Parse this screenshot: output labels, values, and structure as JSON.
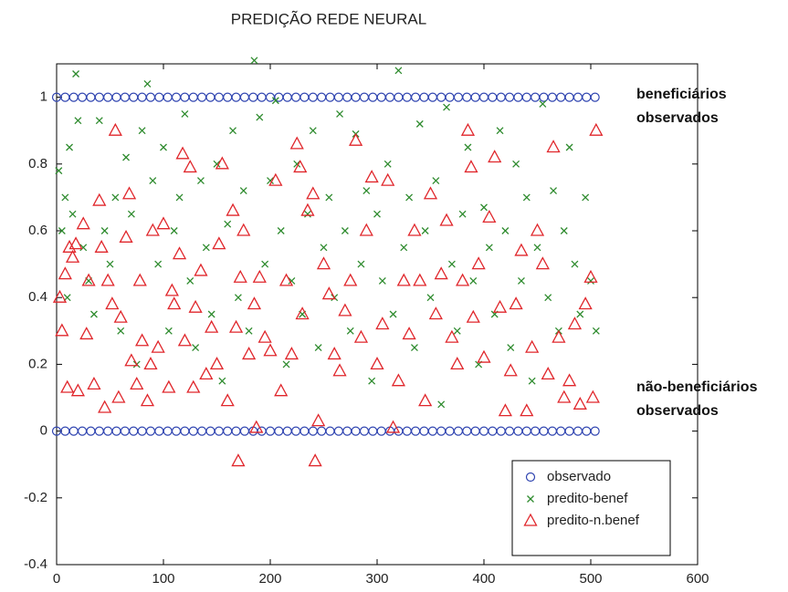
{
  "chart_data": {
    "type": "scatter",
    "title": "PREDIÇÃO REDE NEURAL",
    "xlim": [
      0,
      600
    ],
    "xticks": [
      0,
      100,
      200,
      300,
      400,
      500,
      600
    ],
    "ylim": [
      -0.4,
      1.1
    ],
    "yticks": [
      -0.4,
      -0.2,
      0,
      0.2,
      0.4,
      0.6,
      0.8,
      1
    ],
    "legend": "lower right",
    "annotations": [
      {
        "lines": [
          "beneficiários",
          "observados"
        ]
      },
      {
        "lines": [
          "não-beneficiários",
          "observados"
        ]
      }
    ],
    "series": [
      {
        "name": "observado",
        "color": "#2f44b0",
        "marker": "o",
        "x": [
          0,
          8,
          16,
          24,
          32,
          40,
          48,
          56,
          64,
          72,
          80,
          88,
          96,
          104,
          112,
          120,
          128,
          136,
          144,
          152,
          160,
          168,
          176,
          184,
          192,
          200,
          208,
          216,
          224,
          232,
          240,
          248,
          256,
          264,
          272,
          280,
          288,
          296,
          304,
          312,
          320,
          328,
          336,
          344,
          352,
          360,
          368,
          376,
          384,
          392,
          400,
          408,
          416,
          424,
          432,
          440,
          448,
          456,
          464,
          472,
          480,
          488,
          496,
          504,
          0,
          8,
          16,
          24,
          32,
          40,
          48,
          56,
          64,
          72,
          80,
          88,
          96,
          104,
          112,
          120,
          128,
          136,
          144,
          152,
          160,
          168,
          176,
          184,
          192,
          200,
          208,
          216,
          224,
          232,
          240,
          248,
          256,
          264,
          272,
          280,
          288,
          296,
          304,
          312,
          320,
          328,
          336,
          344,
          352,
          360,
          368,
          376,
          384,
          392,
          400,
          408,
          416,
          424,
          432,
          440,
          448,
          456,
          464,
          472,
          480,
          488,
          496,
          504
        ],
        "values": [
          1,
          1,
          1,
          1,
          1,
          1,
          1,
          1,
          1,
          1,
          1,
          1,
          1,
          1,
          1,
          1,
          1,
          1,
          1,
          1,
          1,
          1,
          1,
          1,
          1,
          1,
          1,
          1,
          1,
          1,
          1,
          1,
          1,
          1,
          1,
          1,
          1,
          1,
          1,
          1,
          1,
          1,
          1,
          1,
          1,
          1,
          1,
          1,
          1,
          1,
          1,
          1,
          1,
          1,
          1,
          1,
          1,
          1,
          1,
          1,
          1,
          1,
          1,
          1,
          0,
          0,
          0,
          0,
          0,
          0,
          0,
          0,
          0,
          0,
          0,
          0,
          0,
          0,
          0,
          0,
          0,
          0,
          0,
          0,
          0,
          0,
          0,
          0,
          0,
          0,
          0,
          0,
          0,
          0,
          0,
          0,
          0,
          0,
          0,
          0,
          0,
          0,
          0,
          0,
          0,
          0,
          0,
          0,
          0,
          0,
          0,
          0,
          0,
          0,
          0,
          0,
          0,
          0,
          0,
          0,
          0,
          0,
          0,
          0,
          0,
          0,
          0,
          0
        ]
      },
      {
        "name": "predito-benef",
        "color": "#2e8b2e",
        "marker": "x",
        "x": [
          2,
          5,
          8,
          10,
          12,
          15,
          18,
          20,
          25,
          30,
          35,
          40,
          45,
          50,
          55,
          60,
          65,
          70,
          75,
          80,
          85,
          90,
          95,
          100,
          105,
          110,
          115,
          120,
          125,
          130,
          135,
          140,
          145,
          150,
          155,
          160,
          165,
          170,
          175,
          180,
          185,
          190,
          195,
          200,
          205,
          210,
          215,
          220,
          225,
          230,
          235,
          240,
          245,
          250,
          255,
          260,
          265,
          270,
          275,
          280,
          285,
          290,
          295,
          300,
          305,
          310,
          315,
          320,
          325,
          330,
          335,
          340,
          345,
          350,
          355,
          360,
          365,
          370,
          375,
          380,
          385,
          390,
          395,
          400,
          405,
          410,
          415,
          420,
          425,
          430,
          435,
          440,
          445,
          450,
          455,
          460,
          465,
          470,
          475,
          480,
          485,
          490,
          495,
          500,
          505
        ],
        "values": [
          0.78,
          0.6,
          0.7,
          0.4,
          0.85,
          0.65,
          1.07,
          0.93,
          0.55,
          0.45,
          0.35,
          0.93,
          0.6,
          0.5,
          0.7,
          0.3,
          0.82,
          0.65,
          0.2,
          0.9,
          1.04,
          0.75,
          0.5,
          0.85,
          0.3,
          0.6,
          0.7,
          0.95,
          0.45,
          0.25,
          0.75,
          0.55,
          0.35,
          0.8,
          0.15,
          0.62,
          0.9,
          0.4,
          0.72,
          0.3,
          1.11,
          0.94,
          0.5,
          0.75,
          0.99,
          0.6,
          0.2,
          0.45,
          0.8,
          0.35,
          0.65,
          0.9,
          0.25,
          0.55,
          0.7,
          0.4,
          0.95,
          0.6,
          0.3,
          0.89,
          0.5,
          0.72,
          0.15,
          0.65,
          0.45,
          0.8,
          0.35,
          1.08,
          0.55,
          0.7,
          0.25,
          0.92,
          0.6,
          0.4,
          0.75,
          0.08,
          0.97,
          0.5,
          0.3,
          0.65,
          0.85,
          0.45,
          0.2,
          0.67,
          0.55,
          0.35,
          0.9,
          0.6,
          0.25,
          0.8,
          0.45,
          0.7,
          0.15,
          0.55,
          0.98,
          0.4,
          0.72,
          0.3,
          0.6,
          0.85,
          0.5,
          0.35,
          0.7,
          0.45,
          0.3
        ]
      },
      {
        "name": "predito-n.benef",
        "color": "#e0262b",
        "marker": "^",
        "x": [
          3,
          5,
          8,
          10,
          12,
          15,
          18,
          20,
          25,
          28,
          30,
          35,
          40,
          42,
          45,
          48,
          52,
          55,
          58,
          60,
          65,
          68,
          70,
          75,
          78,
          80,
          85,
          88,
          90,
          95,
          100,
          105,
          108,
          110,
          115,
          118,
          120,
          125,
          128,
          130,
          135,
          140,
          145,
          150,
          152,
          155,
          160,
          165,
          168,
          170,
          172,
          175,
          180,
          185,
          187,
          190,
          195,
          200,
          205,
          210,
          215,
          220,
          225,
          228,
          230,
          235,
          240,
          242,
          245,
          250,
          255,
          260,
          265,
          270,
          275,
          280,
          285,
          290,
          295,
          300,
          305,
          310,
          315,
          320,
          325,
          330,
          335,
          340,
          345,
          350,
          355,
          360,
          365,
          370,
          375,
          380,
          385,
          388,
          390,
          395,
          400,
          405,
          410,
          415,
          420,
          425,
          430,
          435,
          440,
          445,
          450,
          455,
          460,
          465,
          470,
          475,
          480,
          485,
          490,
          495,
          500,
          502,
          505
        ],
        "values": [
          0.4,
          0.3,
          0.47,
          0.13,
          0.55,
          0.52,
          0.56,
          0.12,
          0.62,
          0.29,
          0.45,
          0.14,
          0.69,
          0.55,
          0.07,
          0.45,
          0.38,
          0.9,
          0.1,
          0.34,
          0.58,
          0.71,
          0.21,
          0.14,
          0.45,
          0.27,
          0.09,
          0.2,
          0.6,
          0.25,
          0.62,
          0.13,
          0.42,
          0.38,
          0.53,
          0.83,
          0.27,
          0.79,
          0.13,
          0.37,
          0.48,
          0.17,
          0.31,
          0.2,
          0.56,
          0.8,
          0.09,
          0.66,
          0.31,
          -0.09,
          0.46,
          0.6,
          0.23,
          0.38,
          0.01,
          0.46,
          0.28,
          0.24,
          0.75,
          0.12,
          0.45,
          0.23,
          0.86,
          0.79,
          0.35,
          0.66,
          0.71,
          -0.09,
          0.03,
          0.5,
          0.41,
          0.23,
          0.18,
          0.36,
          0.45,
          0.87,
          0.28,
          0.6,
          0.76,
          0.2,
          0.32,
          0.75,
          0.01,
          0.15,
          0.45,
          0.29,
          0.6,
          0.45,
          0.09,
          0.71,
          0.35,
          0.47,
          0.63,
          0.28,
          0.2,
          0.45,
          0.9,
          0.79,
          0.34,
          0.5,
          0.22,
          0.64,
          0.82,
          0.37,
          0.06,
          0.18,
          0.38,
          0.54,
          0.06,
          0.25,
          0.6,
          0.5,
          0.17,
          0.85,
          0.28,
          0.1,
          0.15,
          0.32,
          0.08,
          0.38,
          0.46,
          0.1,
          0.9
        ]
      }
    ]
  }
}
